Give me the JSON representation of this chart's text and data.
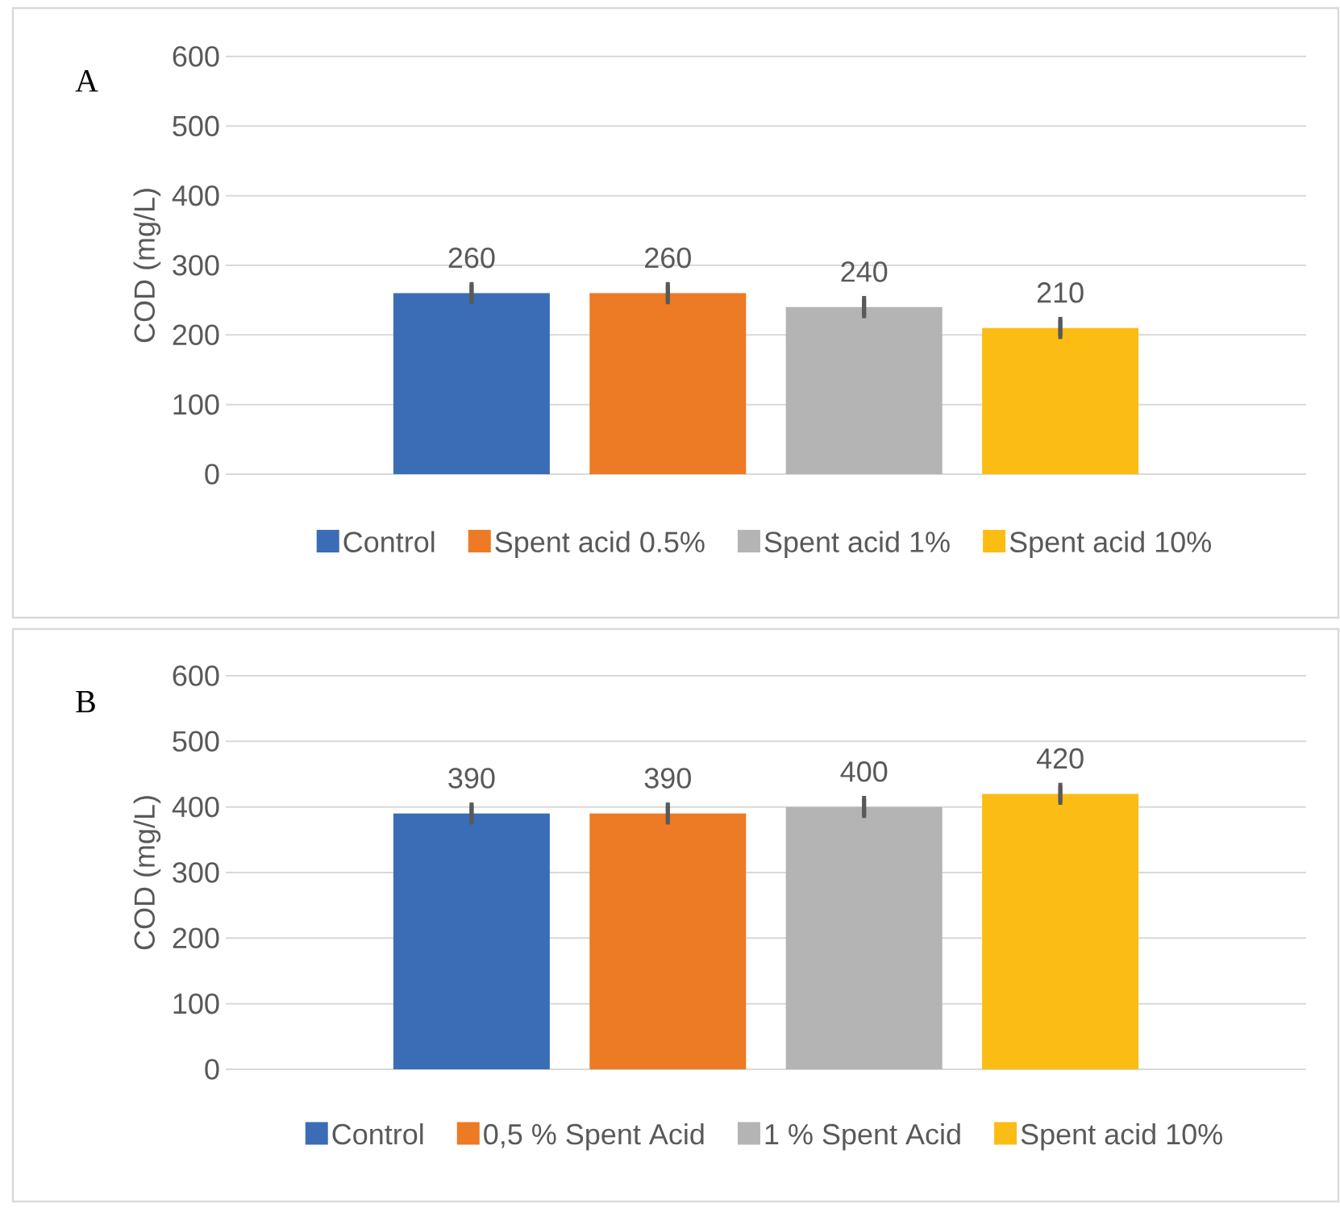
{
  "chart_data": [
    {
      "type": "bar",
      "ylabel": "COD (mg/L)",
      "annotations": [
        "A"
      ],
      "categories": [
        null
      ],
      "ylim": [
        0,
        600
      ],
      "yticks": [
        0,
        100,
        200,
        300,
        400,
        500,
        600
      ],
      "grid": "y",
      "legend": "bottom",
      "data_labels": true,
      "series": [
        {
          "name": "Control",
          "color": "#3a6db5",
          "values": [
            260
          ],
          "errors": [
            2
          ]
        },
        {
          "name": "Spent acid 0.5%",
          "color": "#ed7a24",
          "values": [
            260
          ],
          "errors": [
            2
          ]
        },
        {
          "name": "Spent acid 1%",
          "color": "#b4b4b4",
          "values": [
            240
          ],
          "errors": [
            2
          ]
        },
        {
          "name": "Spent acid 10%",
          "color": "#fbbc14",
          "values": [
            210
          ],
          "errors": [
            2
          ]
        }
      ]
    },
    {
      "type": "bar",
      "ylabel": "COD (mg/L)",
      "annotations": [
        "B"
      ],
      "categories": [
        null
      ],
      "ylim": [
        0,
        600
      ],
      "yticks": [
        0,
        100,
        200,
        300,
        400,
        500,
        600
      ],
      "grid": "y",
      "legend": "bottom",
      "data_labels": true,
      "series": [
        {
          "name": "Control",
          "color": "#3a6db5",
          "values": [
            390
          ],
          "errors": [
            2
          ]
        },
        {
          "name": "0,5 % Spent Acid",
          "color": "#ed7a24",
          "values": [
            390
          ],
          "errors": [
            2
          ]
        },
        {
          "name": "1 % Spent Acid",
          "color": "#b4b4b4",
          "values": [
            400
          ],
          "errors": [
            2
          ]
        },
        {
          "name": "Spent acid 10%",
          "color": "#fbbc14",
          "values": [
            420
          ],
          "errors": [
            2
          ]
        }
      ]
    }
  ]
}
